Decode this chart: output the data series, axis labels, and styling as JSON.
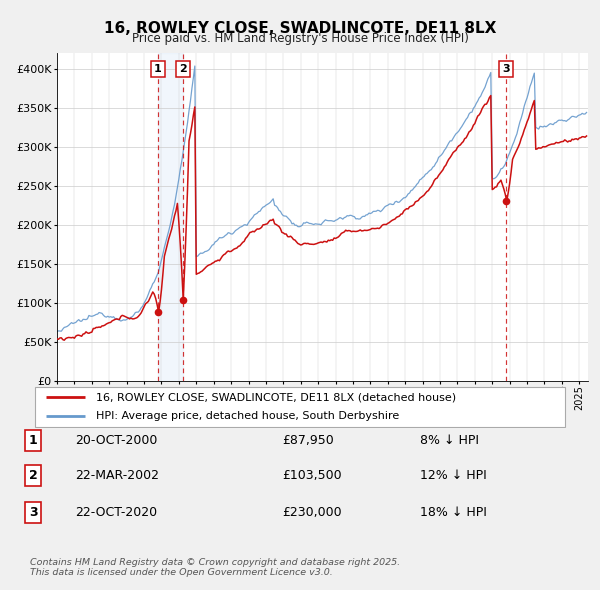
{
  "title": "16, ROWLEY CLOSE, SWADLINCOTE, DE11 8LX",
  "subtitle": "Price paid vs. HM Land Registry's House Price Index (HPI)",
  "ylim": [
    0,
    420000
  ],
  "ytick_values": [
    0,
    50000,
    100000,
    150000,
    200000,
    250000,
    300000,
    350000,
    400000
  ],
  "line1_color": "#cc1111",
  "line2_color": "#6699cc",
  "marker_color": "#cc1111",
  "vline_color": "#cc1111",
  "shade_color": "#d8e8f8",
  "transaction_dates": [
    2000.8,
    2002.22,
    2020.8
  ],
  "transaction_labels": [
    "1",
    "2",
    "3"
  ],
  "transaction_values": [
    87950,
    103500,
    230000
  ],
  "legend1_label": "16, ROWLEY CLOSE, SWADLINCOTE, DE11 8LX (detached house)",
  "legend2_label": "HPI: Average price, detached house, South Derbyshire",
  "table_rows": [
    [
      "1",
      "20-OCT-2000",
      "£87,950",
      "8% ↓ HPI"
    ],
    [
      "2",
      "22-MAR-2002",
      "£103,500",
      "12% ↓ HPI"
    ],
    [
      "3",
      "22-OCT-2020",
      "£230,000",
      "18% ↓ HPI"
    ]
  ],
  "footer": "Contains HM Land Registry data © Crown copyright and database right 2025.\nThis data is licensed under the Open Government Licence v3.0.",
  "background_color": "#f0f0f0",
  "grid_color": "#cccccc",
  "chart_bg": "#ffffff"
}
